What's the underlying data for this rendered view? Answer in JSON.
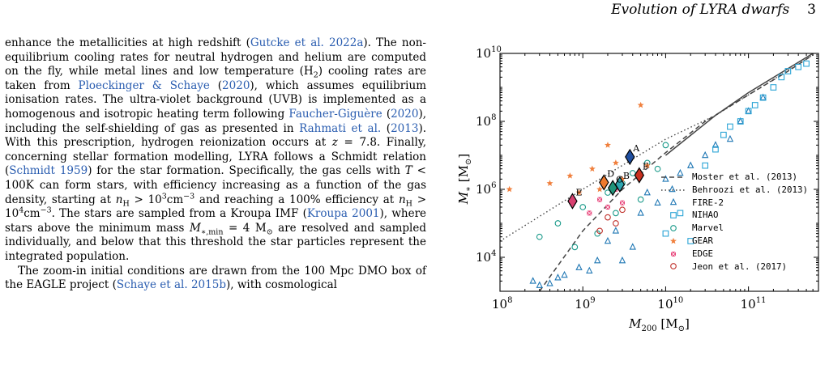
{
  "header": {
    "running_title": "Evolution of LYRA dwarfs",
    "page_number": "3"
  },
  "body_text": {
    "p1": [
      {
        "t": "enhance the metallicities at high redshift ("
      },
      {
        "t": "Gutcke et al. 2022a",
        "link": true
      },
      {
        "t": "). The non-equilibrium cooling rates for neutral hydrogen and helium are computed on the fly, while metal lines and low temperature (H"
      },
      {
        "t": "2",
        "sub": true
      },
      {
        "t": ") cooling rates are taken from "
      },
      {
        "t": "Ploeckinger & Schaye",
        "link": true
      },
      {
        "t": " ("
      },
      {
        "t": "2020",
        "link": true
      },
      {
        "t": "), which assumes equilibrium ionisation rates. The ultra-violet background (UVB) is implemented as a homogenous and isotropic heating term following "
      },
      {
        "t": "Faucher-Giguère",
        "link": true
      },
      {
        "t": " ("
      },
      {
        "t": "2020",
        "link": true
      },
      {
        "t": "), including the self-shielding of gas as presented in "
      },
      {
        "t": "Rahmati et al.",
        "link": true
      },
      {
        "t": " ("
      },
      {
        "t": "2013",
        "link": true
      },
      {
        "t": "). With this prescription, hydrogen reionization occurs at "
      },
      {
        "t": "z",
        "it": true
      },
      {
        "t": " = 7.8. Finally, concerning stellar formation modelling, LYRA follows a Schmidt relation ("
      },
      {
        "t": "Schmidt 1959",
        "link": true
      },
      {
        "t": ") for the star formation. Specifically, the gas cells with "
      },
      {
        "t": "T",
        "it": true
      },
      {
        "t": " < 100K can form stars, with efficiency increasing as a function of the gas density, starting at "
      },
      {
        "t": "n",
        "it": true
      },
      {
        "t": "H",
        "sub": true
      },
      {
        "t": " > 10"
      },
      {
        "t": "3",
        "sup": true
      },
      {
        "t": "cm"
      },
      {
        "t": "−3",
        "sup": true
      },
      {
        "t": " and reaching a 100% efficiency at "
      },
      {
        "t": "n",
        "it": true
      },
      {
        "t": "H",
        "sub": true
      },
      {
        "t": " > 10"
      },
      {
        "t": "4",
        "sup": true
      },
      {
        "t": "cm"
      },
      {
        "t": "−3",
        "sup": true
      },
      {
        "t": ". The stars are sampled from a Kroupa IMF ("
      },
      {
        "t": "Kroupa 2001",
        "link": true
      },
      {
        "t": "), where stars above the minimum mass "
      },
      {
        "t": "M",
        "it": true
      },
      {
        "t": "∗,min",
        "sub": true
      },
      {
        "t": " = 4 M"
      },
      {
        "t": "⊙",
        "sub": true
      },
      {
        "t": " are resolved and sampled individually, and below that this threshold the star particles represent the integrated population."
      }
    ],
    "p2": [
      {
        "t": "The zoom-in initial conditions are drawn from the 100 Mpc DMO box of the EAGLE project ("
      },
      {
        "t": "Schaye et al. 2015b",
        "link": true
      },
      {
        "t": "), with cosmological"
      }
    ]
  },
  "figure": {
    "chart_data": {
      "type": "scatter",
      "log_x": true,
      "log_y": true,
      "xlim": [
        100000000.0,
        700000000000.0
      ],
      "ylim": [
        1000.0,
        10000000000.0
      ],
      "x_ticks": [
        {
          "base": "10",
          "exp": "8",
          "value": 100000000.0
        },
        {
          "base": "10",
          "exp": "9",
          "value": 1000000000.0
        },
        {
          "base": "10",
          "exp": "10",
          "value": 10000000000.0
        },
        {
          "base": "10",
          "exp": "11",
          "value": 100000000000.0
        }
      ],
      "y_ticks": [
        {
          "base": "10",
          "exp": "4",
          "value": 10000.0
        },
        {
          "base": "10",
          "exp": "6",
          "value": 1000000.0
        },
        {
          "base": "10",
          "exp": "8",
          "value": 100000000.0
        },
        {
          "base": "10",
          "exp": "10",
          "value": 10000000000.0
        }
      ],
      "xlabel": {
        "main": "M",
        "sub": "200",
        "unit": "[M",
        "unit_sub": "⊙",
        "unit_close": "]"
      },
      "ylabel": {
        "main": "M",
        "sub": "∗",
        "unit": "[M",
        "unit_sub": "⊙",
        "unit_close": "]"
      },
      "legend_position": "lower-right",
      "series": [
        {
          "name": "Moster et al. (2013)",
          "kind": "line",
          "style": "dashed",
          "color": "#444444",
          "x": [
            300000000.0,
            1000000000.0,
            3000000000.0,
            10000000000.0,
            30000000000.0,
            100000000000.0,
            300000000000.0,
            600000000000.0
          ],
          "y": [
            1000.0,
            60000.0,
            1000000.0,
            12000000.0,
            100000000.0,
            600000000.0,
            3000000000.0,
            9000000000.0
          ]
        },
        {
          "name": "Behroozi et al. (2013)",
          "kind": "line",
          "style": "dotted",
          "color": "#444444",
          "x": [
            100000000.0,
            1000000000.0,
            10000000000.0,
            40000000000.0,
            100000000000.0,
            600000000000.0
          ],
          "y": [
            30000.0,
            1000000.0,
            30000000.0,
            150000000.0,
            600000000.0,
            9000000000.0
          ]
        },
        {
          "name": "",
          "kind": "line",
          "style": "solid",
          "color": "#444444",
          "x": [
            10000000000.0,
            40000000000.0,
            100000000000.0,
            600000000000.0
          ],
          "y": [
            10000000.0,
            150000000.0,
            700000000.0,
            10000000000.0
          ]
        },
        {
          "name": "FIRE-2",
          "kind": "points",
          "marker": "triangle",
          "color": "#1f77b4",
          "x": [
            250000000.0,
            300000000.0,
            400000000.0,
            500000000.0,
            600000000.0,
            900000000.0,
            1200000000.0,
            1500000000.0,
            2000000000.0,
            2500000000.0,
            3000000000.0,
            4000000000.0,
            5000000000.0,
            6000000000.0,
            8000000000.0,
            10000000000.0,
            12000000000.0,
            15000000000.0,
            20000000000.0,
            30000000000.0,
            40000000000.0,
            60000000000.0,
            80000000000.0,
            100000000000.0,
            150000000000.0
          ],
          "y": [
            2000.0,
            1500.0,
            1700.0,
            2500.0,
            3000.0,
            5000.0,
            4000.0,
            8000.0,
            30000.0,
            60000.0,
            8000.0,
            20000.0,
            200000.0,
            800000.0,
            400000.0,
            2000000.0,
            1000000.0,
            3000000.0,
            5000000.0,
            10000000.0,
            20000000.0,
            30000000.0,
            100000000.0,
            200000000.0,
            500000000.0
          ]
        },
        {
          "name": "NIHAO",
          "kind": "points",
          "marker": "square",
          "color": "#2aa4d6",
          "x": [
            10000000000.0,
            15000000000.0,
            20000000000.0,
            30000000000.0,
            40000000000.0,
            50000000000.0,
            60000000000.0,
            80000000000.0,
            100000000000.0,
            120000000000.0,
            150000000000.0,
            200000000000.0,
            250000000000.0,
            300000000000.0,
            400000000000.0,
            500000000000.0
          ],
          "y": [
            50000.0,
            200000.0,
            30000.0,
            5000000.0,
            15000000.0,
            40000000.0,
            70000000.0,
            100000000.0,
            200000000.0,
            300000000.0,
            500000000.0,
            1000000000.0,
            2000000000.0,
            3000000000.0,
            4000000000.0,
            5000000000.0
          ]
        },
        {
          "name": "Marvel",
          "kind": "points",
          "marker": "circle",
          "color": "#1a9a8a",
          "x": [
            300000000.0,
            500000000.0,
            800000000.0,
            1000000000.0,
            1500000000.0,
            2000000000.0,
            2500000000.0,
            3000000000.0,
            4000000000.0,
            5000000000.0,
            6000000000.0,
            8000000000.0,
            10000000000.0
          ],
          "y": [
            40000.0,
            100000.0,
            20000.0,
            300000.0,
            50000.0,
            800000.0,
            200000.0,
            1500000.0,
            3000000.0,
            500000.0,
            6000000.0,
            4000000.0,
            20000000.0
          ]
        },
        {
          "name": "GEAR",
          "kind": "points",
          "marker": "star",
          "color": "#f07f3c",
          "x": [
            130000000.0,
            400000000.0,
            700000000.0,
            900000000.0,
            1300000000.0,
            1600000000.0,
            2000000000.0,
            2500000000.0,
            3000000000.0,
            5000000000.0,
            6000000000.0
          ],
          "y": [
            1000000.0,
            1500000.0,
            2500000.0,
            800000.0,
            4000000.0,
            1000000.0,
            20000000.0,
            6000000.0,
            2000000.0,
            300000000.0,
            5000000.0
          ]
        },
        {
          "name": "EDGE",
          "kind": "points",
          "marker": "crossed-square",
          "color": "#e8447a",
          "x": [
            1200000000.0,
            1600000000.0,
            2000000000.0,
            2500000000.0,
            3000000000.0
          ],
          "y": [
            200000.0,
            500000.0,
            300000.0,
            1000000.0,
            400000.0
          ]
        },
        {
          "name": "Jeon et al. (2017)",
          "kind": "points",
          "marker": "circle",
          "color": "#c0302a",
          "x": [
            1600000000.0,
            2000000000.0,
            2500000000.0,
            3000000000.0
          ],
          "y": [
            60000.0,
            150000.0,
            100000.0,
            250000.0
          ]
        }
      ],
      "lyra_points": [
        {
          "label": "A",
          "x": 3700000000.0,
          "y": 9000000.0,
          "color": "#1f4fa0"
        },
        {
          "label": "B",
          "x": 2800000000.0,
          "y": 1400000.0,
          "color": "#2ea6b0"
        },
        {
          "label": "C",
          "x": 2300000000.0,
          "y": 1100000.0,
          "color": "#22947a"
        },
        {
          "label": "D",
          "x": 1800000000.0,
          "y": 1600000.0,
          "color": "#ee7a2e"
        },
        {
          "label": "E",
          "x": 750000000.0,
          "y": 450000.0,
          "color": "#d84070"
        },
        {
          "label": "F",
          "x": 4800000000.0,
          "y": 2600000.0,
          "color": "#c8301f"
        }
      ]
    },
    "legend": [
      {
        "label": "Moster et al. (2013)",
        "icon": "dashed-line-icon",
        "color": "#444444"
      },
      {
        "label": "Behroozi et al. (2013)",
        "icon": "dotted-line-icon",
        "color": "#444444"
      },
      {
        "label": "FIRE-2",
        "icon": "triangle-marker-icon",
        "color": "#1f77b4"
      },
      {
        "label": "NIHAO",
        "icon": "square-marker-icon",
        "color": "#2aa4d6"
      },
      {
        "label": "Marvel",
        "icon": "circle-marker-icon",
        "color": "#1a9a8a"
      },
      {
        "label": "GEAR",
        "icon": "star-marker-icon",
        "color": "#f07f3c"
      },
      {
        "label": "EDGE",
        "icon": "crossed-square-marker-icon",
        "color": "#e8447a"
      },
      {
        "label": "Jeon et al. (2017)",
        "icon": "circle-marker-icon",
        "color": "#c0302a"
      }
    ]
  }
}
